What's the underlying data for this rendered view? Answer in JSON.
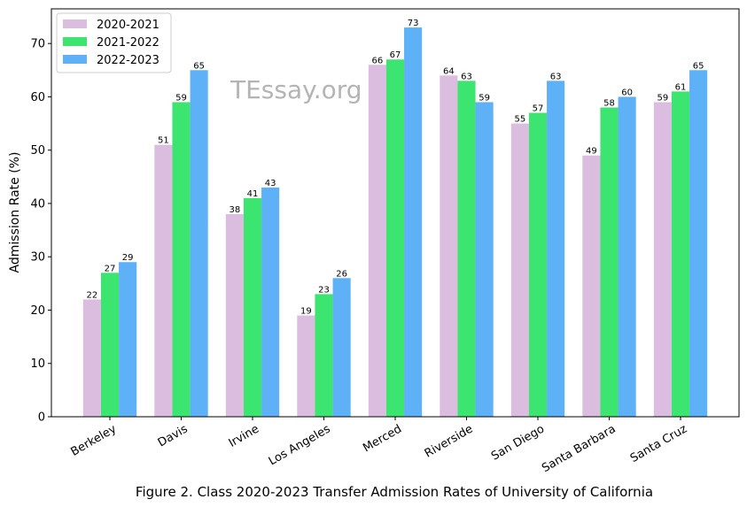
{
  "chart_data": {
    "type": "bar",
    "categories": [
      "Berkeley",
      "Davis",
      "Irvine",
      "Los Angeles",
      "Merced",
      "Riverside",
      "San Diego",
      "Santa Barbara",
      "Santa Cruz"
    ],
    "series": [
      {
        "name": "2020-2021",
        "color": "#dbbde0",
        "values": [
          22,
          51,
          38,
          19,
          66,
          64,
          55,
          49,
          59
        ]
      },
      {
        "name": "2021-2022",
        "color": "#3be56f",
        "values": [
          27,
          59,
          41,
          23,
          67,
          63,
          57,
          58,
          61
        ]
      },
      {
        "name": "2022-2023",
        "color": "#5eb0f7",
        "values": [
          29,
          65,
          43,
          26,
          73,
          59,
          63,
          60,
          65
        ]
      }
    ],
    "ylabel": "Admission Rate (%)",
    "ylim": [
      0,
      76.5
    ],
    "yticks": [
      0,
      10,
      20,
      30,
      40,
      50,
      60,
      70
    ],
    "grid": false,
    "legend": "top-left",
    "caption": "Figure 2. Class 2020-2023 Transfer Admission Rates of University of California",
    "watermark": "TEssay.org"
  }
}
